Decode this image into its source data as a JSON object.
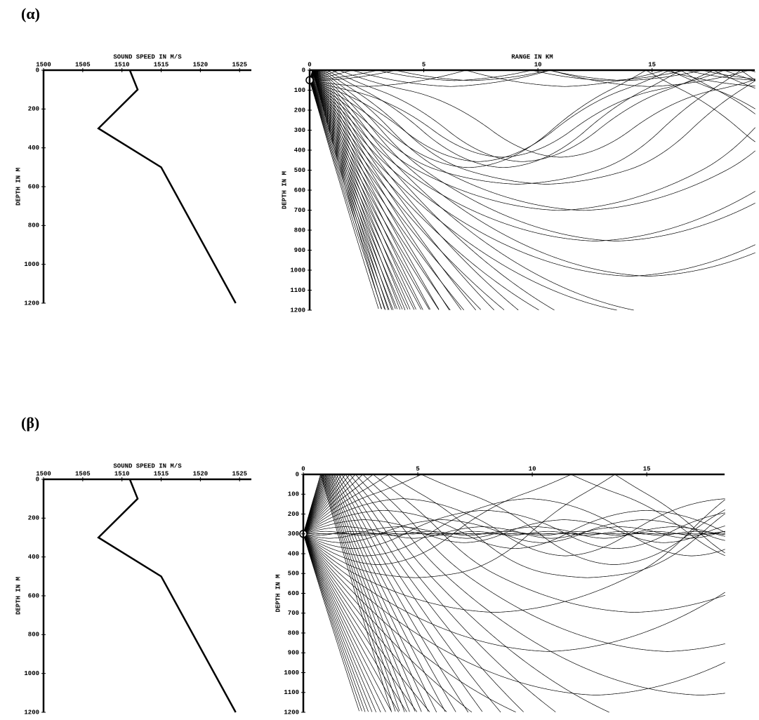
{
  "panel_labels": [
    "(α)",
    "(β)"
  ],
  "chart_data": [
    {
      "type": "profile",
      "xlabel": "SOUND SPEED IN M/S",
      "ylabel": "DEPTH IN M",
      "depths": [
        0,
        100,
        300,
        500,
        1200
      ],
      "values": [
        1511,
        1512,
        1507,
        1515,
        1524.5
      ],
      "xlim": [
        1500,
        1526.5
      ],
      "xticks": [
        1500,
        1505,
        1510,
        1515,
        1520,
        1525
      ],
      "ylim": [
        0,
        1200
      ],
      "yticks": [
        0,
        200,
        400,
        600,
        800,
        1000,
        1200
      ],
      "color": "#000000"
    },
    {
      "type": "raytrace",
      "xlabel": "RANGE IN KM",
      "ylabel": "DEPTH IN M",
      "source_depth": 50,
      "xlim": [
        0,
        19.5
      ],
      "xticks": [
        0,
        5,
        10,
        15
      ],
      "ylim": [
        0,
        1200
      ],
      "yticks": [
        0,
        100,
        200,
        300,
        400,
        500,
        600,
        700,
        800,
        900,
        1000,
        1100,
        1200
      ],
      "color": "#000000"
    },
    {
      "type": "profile",
      "xlabel": "SOUND SPEED IN M/S",
      "ylabel": "DEPTH IN M",
      "depths": [
        0,
        100,
        300,
        500,
        1200
      ],
      "values": [
        1511,
        1512,
        1507,
        1515,
        1524.5
      ],
      "xlim": [
        1500,
        1526.5
      ],
      "xticks": [
        1500,
        1505,
        1510,
        1515,
        1520,
        1525
      ],
      "ylim": [
        0,
        1200
      ],
      "yticks": [
        0,
        200,
        400,
        600,
        800,
        1000,
        1200
      ],
      "color": "#000000"
    },
    {
      "type": "raytrace",
      "ylabel": "DEPTH IN M",
      "source_depth": 300,
      "xlim": [
        0,
        18.4
      ],
      "xticks": [
        0,
        5,
        10,
        15
      ],
      "ylim": [
        0,
        1200
      ],
      "yticks": [
        0,
        100,
        200,
        300,
        400,
        500,
        600,
        700,
        800,
        900,
        1000,
        1100,
        1200
      ],
      "color": "#000000"
    }
  ]
}
